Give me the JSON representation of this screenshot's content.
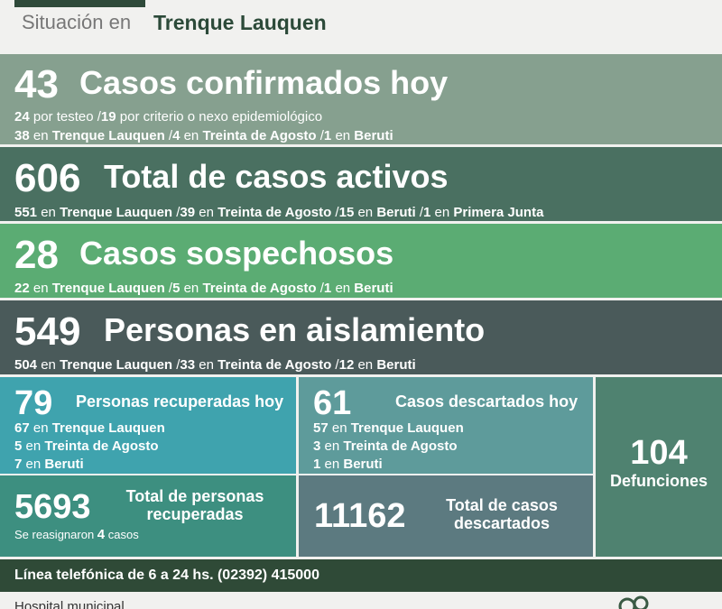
{
  "header": {
    "prefix": "Situación en",
    "city": "Trenque Lauquen"
  },
  "confirmados": {
    "count": "43",
    "title": "Casos confirmados hoy",
    "line1": {
      "a": "24",
      "b": " por testeo  /",
      "c": "19",
      "d": " por criterio o nexo epidemiológico"
    },
    "line2": [
      {
        "n": "38",
        "t": "Trenque Lauquen"
      },
      {
        "n": "4",
        "t": "Treinta de Agosto"
      },
      {
        "n": "1",
        "t": "Beruti"
      }
    ]
  },
  "activos": {
    "count": "606",
    "title": "Total de casos activos",
    "line": [
      {
        "n": "551",
        "t": "Trenque Lauquen"
      },
      {
        "n": "39",
        "t": "Treinta de Agosto"
      },
      {
        "n": "15",
        "t": "Beruti"
      },
      {
        "n": "1",
        "t": "Primera Junta"
      }
    ]
  },
  "sospechosos": {
    "count": "28",
    "title": "Casos sospechosos",
    "line": [
      {
        "n": "22",
        "t": "Trenque Lauquen"
      },
      {
        "n": "5",
        "t": "Treinta de Agosto"
      },
      {
        "n": "1",
        "t": "Beruti"
      }
    ]
  },
  "aislamiento": {
    "count": "549",
    "title": "Personas en aislamiento",
    "line": [
      {
        "n": "504",
        "t": "Trenque Lauquen"
      },
      {
        "n": "33",
        "t": "Treinta de Agosto"
      },
      {
        "n": "12",
        "t": "Beruti"
      }
    ]
  },
  "en": "en",
  "recuperados_hoy": {
    "count": "79",
    "title": "Personas recuperadas hoy",
    "rows": [
      {
        "n": "67",
        "t": "Trenque Lauquen"
      },
      {
        "n": "5",
        "t": "Treinta de Agosto"
      },
      {
        "n": "7",
        "t": "Beruti"
      }
    ]
  },
  "recuperados_total": {
    "count": "5693",
    "title1": "Total de personas",
    "title2": "recuperadas",
    "note_a": "Se reasignaron",
    "note_n": "4",
    "note_b": "casos"
  },
  "descartados_hoy": {
    "count": "61",
    "title": "Casos descartados hoy",
    "rows": [
      {
        "n": "57",
        "t": "Trenque Lauquen"
      },
      {
        "n": "3",
        "t": "Treinta de Agosto"
      },
      {
        "n": "1",
        "t": "Beruti"
      }
    ]
  },
  "descartados_total": {
    "count": "11162",
    "title1": "Total de casos",
    "title2": "descartados"
  },
  "defunciones": {
    "count": "104",
    "title": "Defunciones"
  },
  "phone": "Línea telefónica de 6 a 24 hs. (02392) 415000",
  "hospital": "Hospital municipal",
  "colors": {
    "dark_green": "#2f4a37",
    "teal": "#3fa3ae",
    "green": "#5bac73"
  }
}
